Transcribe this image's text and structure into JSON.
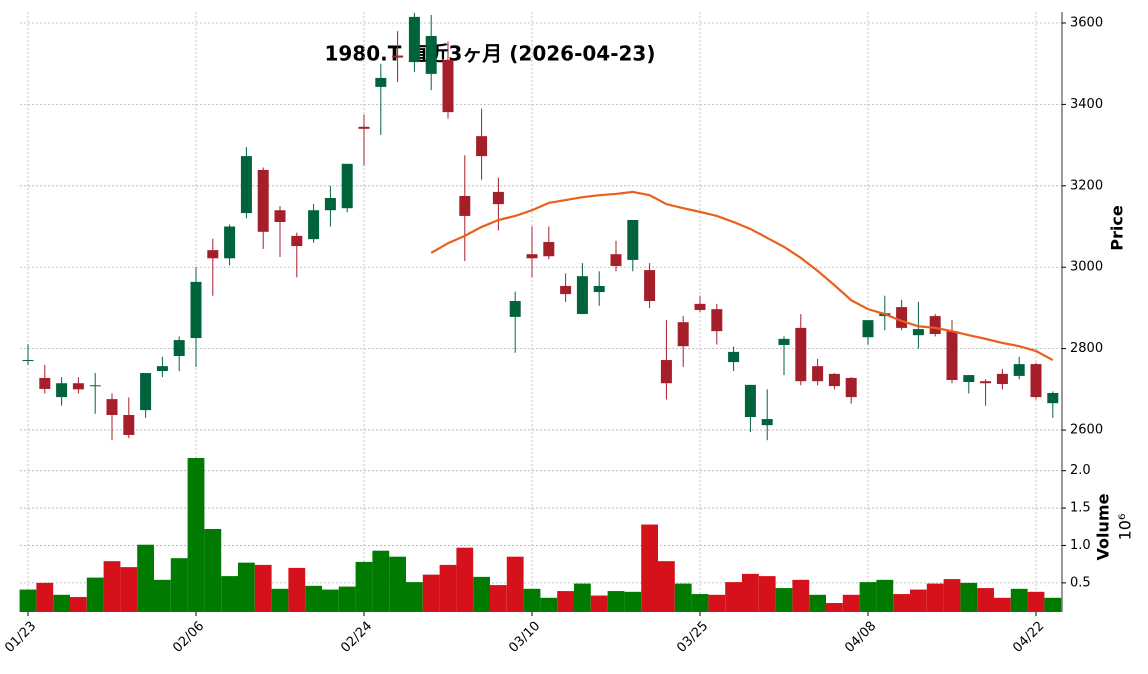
{
  "chart_data": {
    "type": "candlestick",
    "title": "1980.T 直近3ヶ月 (2026-04-23)",
    "x": [
      "01/23",
      null,
      null,
      null,
      null,
      null,
      null,
      null,
      null,
      null,
      "02/06",
      null,
      null,
      null,
      null,
      null,
      null,
      null,
      null,
      null,
      "02/24",
      null,
      null,
      null,
      null,
      null,
      null,
      null,
      null,
      null,
      "03/10",
      null,
      null,
      null,
      null,
      null,
      null,
      null,
      null,
      null,
      "03/25",
      null,
      null,
      null,
      null,
      null,
      null,
      null,
      null,
      null,
      "04/08",
      null,
      null,
      null,
      null,
      null,
      null,
      null,
      null,
      null,
      "04/22",
      null
    ],
    "open": [
      2770,
      2728,
      2681,
      2715,
      2708,
      2676,
      2637,
      2649,
      2745,
      2782,
      2826,
      3042,
      3022,
      3133,
      3239,
      3140,
      3077,
      3069,
      3140,
      3145,
      3345,
      3443,
      3520,
      3504,
      3475,
      3509,
      3175,
      3322,
      3185,
      2878,
      3032,
      3062,
      2954,
      2885,
      2939,
      3032,
      3018,
      2993,
      2772,
      2865,
      2910,
      2897,
      2767,
      2632,
      2612,
      2809,
      2851,
      2757,
      2738,
      2728,
      2828,
      2880,
      2902,
      2833,
      2880,
      2843,
      2718,
      2720,
      2738,
      2733,
      2762,
      2666
    ],
    "high": [
      2811,
      2760,
      2730,
      2730,
      2740,
      2690,
      2680,
      2740,
      2780,
      2830,
      3000,
      3070,
      3105,
      3295,
      3245,
      3150,
      3085,
      3155,
      3200,
      3254,
      3375,
      3500,
      3580,
      3625,
      3620,
      3555,
      3275,
      3390,
      3220,
      2940,
      3100,
      3100,
      2985,
      3010,
      2990,
      3065,
      3116,
      3010,
      2870,
      2880,
      2930,
      2910,
      2805,
      2711,
      2700,
      2830,
      2885,
      2775,
      2740,
      2730,
      2870,
      2930,
      2920,
      2915,
      2885,
      2870,
      2735,
      2725,
      2750,
      2780,
      2765,
      2695
    ],
    "low": [
      2760,
      2690,
      2660,
      2690,
      2640,
      2575,
      2580,
      2630,
      2730,
      2745,
      2755,
      2930,
      3005,
      3120,
      3045,
      3025,
      2975,
      3060,
      3100,
      3135,
      3250,
      3325,
      3455,
      3480,
      3435,
      3365,
      3015,
      3215,
      3090,
      2790,
      2975,
      3020,
      2915,
      2885,
      2905,
      2990,
      2990,
      2900,
      2675,
      2755,
      2890,
      2810,
      2745,
      2595,
      2575,
      2735,
      2710,
      2710,
      2700,
      2665,
      2810,
      2845,
      2845,
      2800,
      2830,
      2715,
      2690,
      2660,
      2700,
      2725,
      2675,
      2630
    ],
    "close": [
      2772,
      2701,
      2715,
      2700,
      2710,
      2637,
      2588,
      2740,
      2757,
      2821,
      2964,
      3022,
      3100,
      3273,
      3087,
      3111,
      3052,
      3140,
      3170,
      3254,
      3340,
      3465,
      3515,
      3615,
      3568,
      3381,
      3126,
      3273,
      3155,
      2917,
      3022,
      3027,
      2934,
      2978,
      2954,
      3003,
      3116,
      2917,
      2715,
      2806,
      2895,
      2843,
      2792,
      2711,
      2627,
      2824,
      2720,
      2720,
      2708,
      2681,
      2870,
      2887,
      2851,
      2848,
      2836,
      2723,
      2735,
      2715,
      2713,
      2762,
      2681,
      2691
    ],
    "up_color": "#00633c",
    "down_color": "#a51f2b",
    "moving_average": {
      "color": "#e8601c",
      "values": [
        null,
        null,
        null,
        null,
        null,
        null,
        null,
        null,
        null,
        null,
        null,
        null,
        null,
        null,
        null,
        null,
        null,
        null,
        null,
        null,
        null,
        null,
        null,
        null,
        3035,
        3059,
        3077,
        3099,
        3116,
        3126,
        3140,
        3158,
        3165,
        3172,
        3177,
        3180,
        3185,
        3177,
        3155,
        3145,
        3136,
        3126,
        3111,
        3094,
        3072,
        3050,
        3023,
        2991,
        2956,
        2919,
        2897,
        2885,
        2868,
        2855,
        2851,
        2843,
        2833,
        2824,
        2814,
        2806,
        2794,
        2772
      ]
    },
    "ylabel": "Price",
    "ylim": [
      2551,
      3627
    ],
    "yticks": [
      2600,
      2800,
      3000,
      3200,
      3400,
      3600
    ],
    "grid": true,
    "volume": {
      "label": "Volume",
      "scale_label": "10⁶",
      "ylim": [
        0.11,
        2.25
      ],
      "yticks": [
        0.5,
        {
          "value": 1,
          "label": "1.0"
        },
        1.5,
        {
          "value": 2,
          "label": "2.0"
        }
      ],
      "values": [
        0.41,
        0.5,
        0.34,
        0.31,
        0.57,
        0.79,
        0.71,
        1.01,
        0.54,
        0.83,
        2.17,
        1.22,
        0.59,
        0.77,
        0.74,
        0.42,
        0.7,
        0.46,
        0.41,
        0.45,
        0.78,
        0.93,
        0.85,
        0.51,
        0.61,
        0.74,
        0.97,
        0.58,
        0.47,
        0.85,
        0.42,
        0.3,
        0.39,
        0.49,
        0.33,
        0.39,
        0.38,
        1.28,
        0.79,
        0.49,
        0.35,
        0.34,
        0.51,
        0.62,
        0.59,
        0.43,
        0.54,
        0.34,
        0.23,
        0.34,
        0.51,
        0.54,
        0.35,
        0.41,
        0.49,
        0.55,
        0.5,
        0.43,
        0.3,
        0.42,
        0.38,
        0.3
      ],
      "colors": [
        "#007a00",
        "#d5121b",
        "#007a00",
        "#d5121b",
        "#007a00",
        "#d5121b",
        "#d5121b",
        "#007a00",
        "#007a00",
        "#007a00",
        "#007a00",
        "#007a00",
        "#007a00",
        "#007a00",
        "#d5121b",
        "#007a00",
        "#d5121b",
        "#007a00",
        "#007a00",
        "#007a00",
        "#007a00",
        "#007a00",
        "#007a00",
        "#007a00",
        "#d5121b",
        "#d5121b",
        "#d5121b",
        "#007a00",
        "#d5121b",
        "#d5121b",
        "#007a00",
        "#007a00",
        "#d5121b",
        "#007a00",
        "#d5121b",
        "#007a00",
        "#007a00",
        "#d5121b",
        "#d5121b",
        "#007a00",
        "#007a00",
        "#d5121b",
        "#d5121b",
        "#d5121b",
        "#d5121b",
        "#007a00",
        "#d5121b",
        "#007a00",
        "#d5121b",
        "#d5121b",
        "#007a00",
        "#007a00",
        "#d5121b",
        "#d5121b",
        "#d5121b",
        "#d5121b",
        "#007a00",
        "#d5121b",
        "#d5121b",
        "#007a00",
        "#d5121b",
        "#007a00"
      ]
    }
  }
}
